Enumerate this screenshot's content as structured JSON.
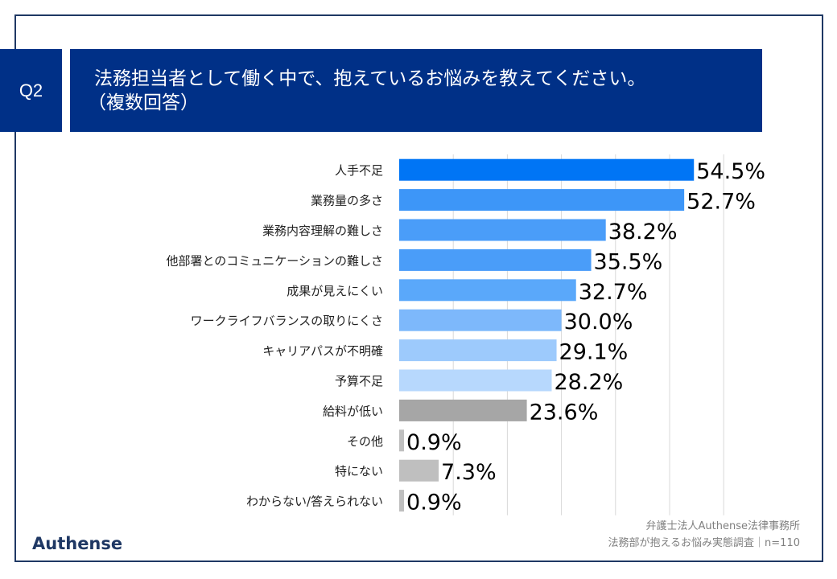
{
  "header": {
    "question_no": "Q2",
    "title_line1": "法務担当者として働く中で、抱えているお悩みを教えてください。",
    "title_line2": "（複数回答）"
  },
  "footer": {
    "credit_line1": "弁護士法人Authense法律事務所",
    "credit_line2": "法務部が抱えるお悩み実態調査｜n=110",
    "logo": "Authense"
  },
  "chart_data": {
    "type": "bar",
    "orientation": "horizontal",
    "categories": [
      "人手不足",
      "業務量の多さ",
      "業務内容理解の難しさ",
      "他部署とのコミュニケーションの難しさ",
      "成果が見えにくい",
      "ワークライフバランスの取りにくさ",
      "キャリアパスが不明確",
      "予算不足",
      "給料が低い",
      "その他",
      "特にない",
      "わからない/答えられない"
    ],
    "values": [
      54.5,
      52.7,
      38.2,
      35.5,
      32.7,
      30.0,
      29.1,
      28.2,
      23.6,
      0.9,
      7.3,
      0.9
    ],
    "labels": [
      "54.5%",
      "52.7%",
      "38.2%",
      "35.5%",
      "32.7%",
      "30.0%",
      "29.1%",
      "28.2%",
      "23.6%",
      "0.9%",
      "7.3%",
      "0.9%"
    ],
    "colors": [
      "#0075f5",
      "#3d96f8",
      "#4a9df9",
      "#4a9df9",
      "#5aa8fa",
      "#7db8fb",
      "#9dcafc",
      "#b7d8fd",
      "#a6a6a6",
      "#bfbfbf",
      "#bfbfbf",
      "#bfbfbf"
    ],
    "xlim": [
      0,
      60
    ],
    "grid": true,
    "unit": "%"
  }
}
